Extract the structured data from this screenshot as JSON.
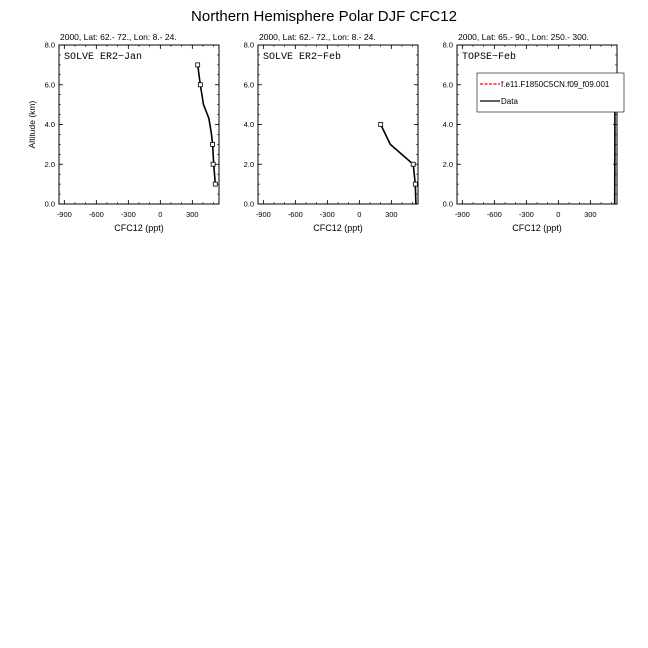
{
  "title": "Northern Hemisphere Polar DJF CFC12",
  "chart_data": [
    {
      "type": "line",
      "subtitle": "2000, Lat: 62.- 72., Lon: 8.- 24.",
      "label": "SOLVE ER2−Jan",
      "xlabel": "CFC12 (ppt)",
      "ylabel": "Altitude (km)",
      "xlim": [
        -950,
        550
      ],
      "ylim": [
        0,
        8
      ],
      "xticks": [
        "-900",
        "-600",
        "-300",
        "0",
        "300"
      ],
      "yticks": [
        "0.0",
        "2.0",
        "4.0",
        "6.0",
        "8.0"
      ],
      "series": [
        {
          "x": [
            515,
            500,
            490,
            480,
            455,
            405,
            375,
            350
          ],
          "y": [
            1.0,
            2.0,
            3.0,
            3.5,
            4.3,
            5.0,
            6.0,
            7.0
          ],
          "markers": [
            [
              515,
              1.0
            ],
            [
              495,
              2.0
            ],
            [
              490,
              3.0
            ],
            [
              375,
              6.0
            ],
            [
              350,
              7.0
            ]
          ],
          "color": "#000000"
        }
      ]
    },
    {
      "type": "line",
      "subtitle": "2000, Lat: 62.- 72., Lon: 8.- 24.",
      "label": "SOLVE ER2−Feb",
      "xlabel": "CFC12 (ppt)",
      "ylabel": "",
      "xlim": [
        -950,
        550
      ],
      "ylim": [
        0,
        8
      ],
      "xticks": [
        "-900",
        "-600",
        "-300",
        "0",
        "300"
      ],
      "yticks": [
        "0.0",
        "2.0",
        "4.0",
        "6.0",
        "8.0"
      ],
      "series": [
        {
          "x": [
            530,
            525,
            505,
            290,
            200
          ],
          "y": [
            0.0,
            1.0,
            2.0,
            3.0,
            4.0
          ],
          "markers": [
            [
              525,
              1.0
            ],
            [
              505,
              2.0
            ],
            [
              200,
              4.0
            ]
          ],
          "color": "#000000"
        }
      ]
    },
    {
      "type": "line",
      "subtitle": "2000, Lat: 65.- 90., Lon: 250.- 300.",
      "label": "TOPSE−Feb",
      "xlabel": "CFC12 (ppt)",
      "ylabel": "",
      "xlim": [
        -950,
        550
      ],
      "ylim": [
        0,
        8
      ],
      "xticks": [
        "-900",
        "-600",
        "-300",
        "0",
        "300"
      ],
      "yticks": [
        "0.0",
        "2.0",
        "4.0",
        "6.0",
        "8.0"
      ],
      "legend": {
        "placement": "top-right",
        "entries": [
          {
            "name": "f.e11.F1850C5CN.f09_f09.001",
            "color": "#ff0000",
            "dash": true
          },
          {
            "name": "Data",
            "color": "#000000",
            "dash": false
          }
        ]
      },
      "series": [
        {
          "x": [
            528,
            530,
            530,
            530
          ],
          "y": [
            0.0,
            3.0,
            6.0,
            6.5
          ],
          "markers": [],
          "color": "#000000"
        }
      ]
    }
  ]
}
